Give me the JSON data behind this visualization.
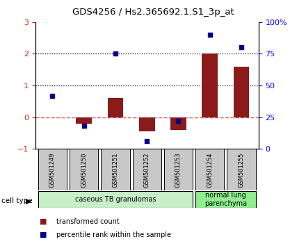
{
  "title": "GDS4256 / Hs2.365692.1.S1_3p_at",
  "samples": [
    "GSM501249",
    "GSM501250",
    "GSM501251",
    "GSM501252",
    "GSM501253",
    "GSM501254",
    "GSM501255"
  ],
  "transformed_counts": [
    0.0,
    -0.2,
    0.6,
    -0.45,
    -0.4,
    2.02,
    1.6
  ],
  "percentile_ranks_pct": [
    42,
    18,
    75,
    6,
    22,
    90,
    80
  ],
  "ylim_left": [
    -1.0,
    3.0
  ],
  "ylim_right": [
    0.0,
    100.0
  ],
  "yticks_left": [
    -1,
    0,
    1,
    2,
    3
  ],
  "yticks_right": [
    0,
    25,
    50,
    75,
    100
  ],
  "ytick_labels_right": [
    "0",
    "25",
    "50",
    "75",
    "100%"
  ],
  "bar_color": "#8B1A1A",
  "dot_color": "#00008B",
  "zero_line_color": "#CD5C5C",
  "hline_color": "black",
  "cell_type_groups": [
    {
      "label": "caseous TB granulomas",
      "span": [
        0,
        4
      ],
      "color": "#C8F0C8"
    },
    {
      "label": "normal lung\nparenchyma",
      "span": [
        5,
        6
      ],
      "color": "#90EE90"
    }
  ],
  "sample_box_color": "#C8C8C8",
  "legend_bar_label": "transformed count",
  "legend_dot_label": "percentile rank within the sample",
  "cell_type_label": "cell type",
  "bar_width": 0.5,
  "figure_bg": "#ffffff"
}
